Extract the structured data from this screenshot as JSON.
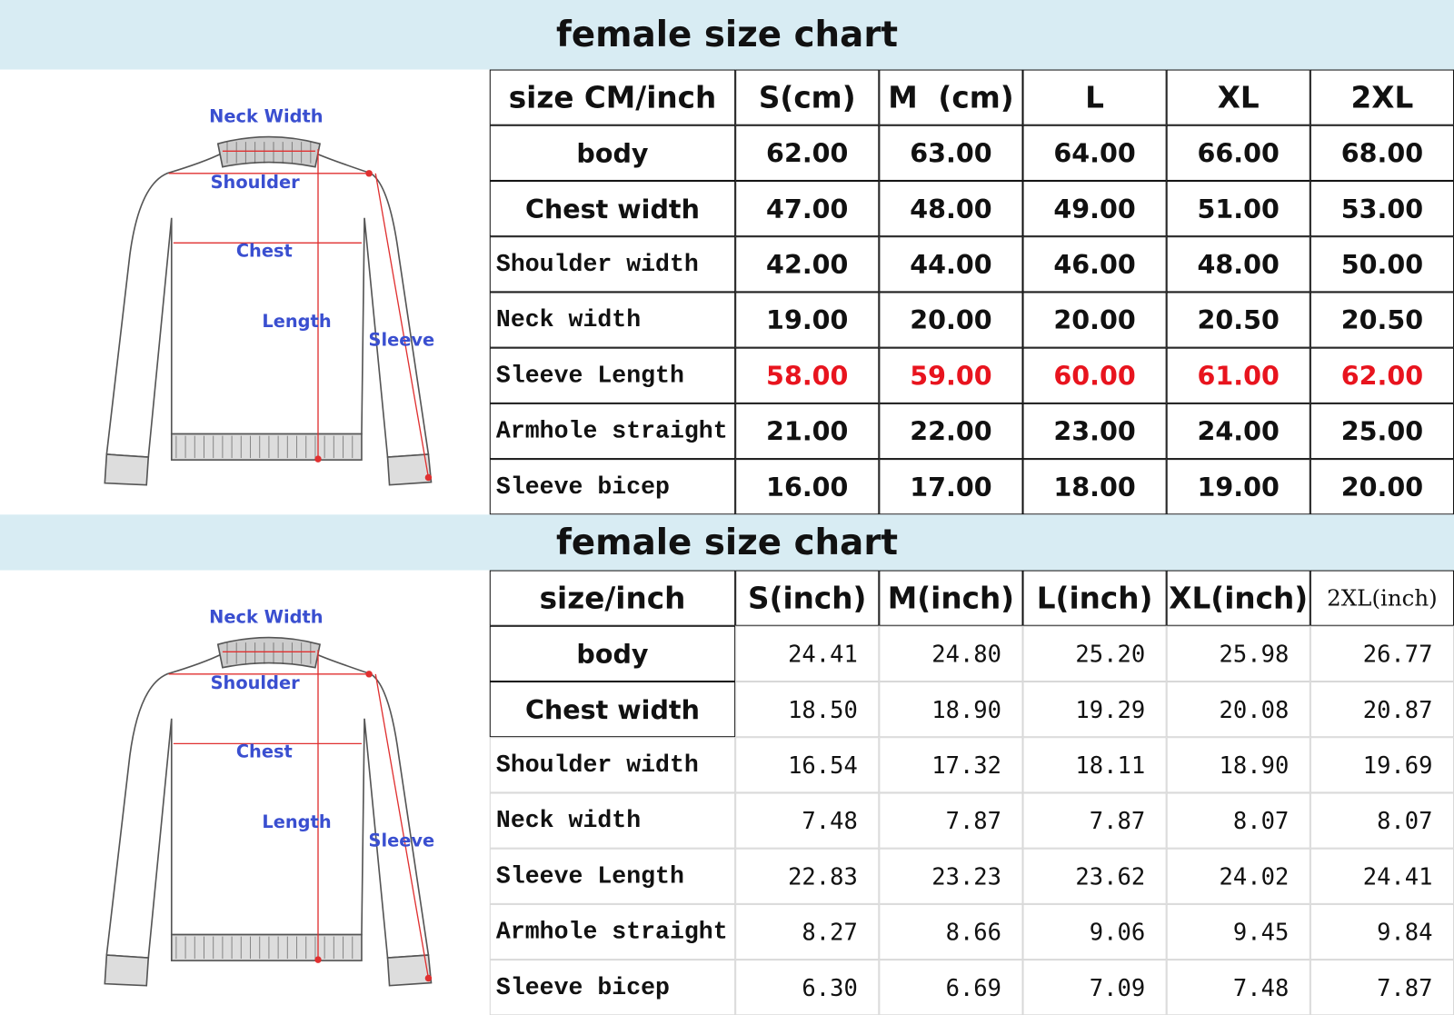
{
  "sections": [
    {
      "title": "female size chart",
      "diagram": {
        "neck": "Neck Width",
        "shoulder": "Shoulder",
        "chest": "Chest",
        "length": "Length",
        "sleeve": "Sleeve"
      },
      "table": {
        "header": [
          "size CM/inch",
          "S(cm)",
          "M  (cm)",
          "L",
          "XL",
          "2XL"
        ],
        "rows": [
          {
            "label": "body",
            "values": [
              "62.00",
              "63.00",
              "64.00",
              "66.00",
              "68.00"
            ]
          },
          {
            "label": "Chest width",
            "values": [
              "47.00",
              "48.00",
              "49.00",
              "51.00",
              "53.00"
            ]
          },
          {
            "label": "Shoulder width",
            "values": [
              "42.00",
              "44.00",
              "46.00",
              "48.00",
              "50.00"
            ]
          },
          {
            "label": "Neck width",
            "values": [
              "19.00",
              "20.00",
              "20.00",
              "20.50",
              "20.50"
            ]
          },
          {
            "label": "Sleeve Length",
            "values": [
              "58.00",
              "59.00",
              "60.00",
              "61.00",
              "62.00"
            ],
            "color": "#e8141e"
          },
          {
            "label": "Armhole straight",
            "values": [
              "21.00",
              "22.00",
              "23.00",
              "24.00",
              "25.00"
            ]
          },
          {
            "label": "Sleeve bicep",
            "values": [
              "16.00",
              "17.00",
              "18.00",
              "19.00",
              "20.00"
            ]
          }
        ]
      }
    },
    {
      "title": "female size chart",
      "diagram": {
        "neck": "Neck Width",
        "shoulder": "Shoulder",
        "chest": "Chest",
        "length": "Length",
        "sleeve": "Sleeve"
      },
      "table": {
        "header": [
          "size/inch",
          "S(inch)",
          "M(inch)",
          "L(inch)",
          "XL(inch)",
          "2XL(inch)"
        ],
        "rows": [
          {
            "label": "body",
            "values": [
              "24.41",
              "24.80",
              "25.20",
              "25.98",
              "26.77"
            ]
          },
          {
            "label": "Chest width",
            "values": [
              "18.50",
              "18.90",
              "19.29",
              "20.08",
              "20.87"
            ]
          },
          {
            "label": "Shoulder width",
            "values": [
              "16.54",
              "17.32",
              "18.11",
              "18.90",
              "19.69"
            ]
          },
          {
            "label": "Neck width",
            "values": [
              "7.48",
              "7.87",
              "7.87",
              "8.07",
              "8.07"
            ]
          },
          {
            "label": "Sleeve Length",
            "values": [
              "22.83",
              "23.23",
              "23.62",
              "24.02",
              "24.41"
            ]
          },
          {
            "label": "Armhole straight",
            "values": [
              "8.27",
              "8.66",
              "9.06",
              "9.45",
              "9.84"
            ]
          },
          {
            "label": "Sleeve bicep",
            "values": [
              "6.30",
              "6.69",
              "7.09",
              "7.48",
              "7.87"
            ]
          }
        ]
      }
    }
  ]
}
